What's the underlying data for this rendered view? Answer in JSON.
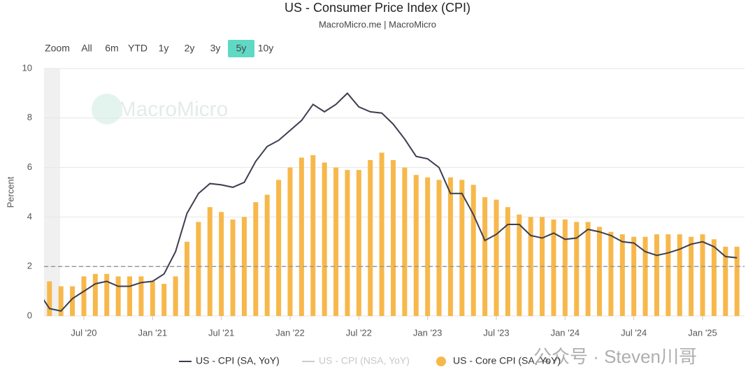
{
  "chart_data": {
    "type": "bar-line",
    "title": "US - Consumer Price Index (CPI)",
    "subtitle": "MacroMicro.me | MacroMicro",
    "range_buttons": [
      "Zoom",
      "All",
      "6m",
      "YTD",
      "1y",
      "2y",
      "3y",
      "5y",
      "10y"
    ],
    "selected_range": "5y",
    "ylabel": "Percent",
    "ylim": [
      0,
      10
    ],
    "yticks": [
      0,
      2,
      4,
      6,
      8,
      10
    ],
    "grid": true,
    "reference_line": 2,
    "watermark": "MacroMicro",
    "overlay_text": "公众号 · Steven川哥",
    "categories": [
      null,
      null,
      null,
      null,
      "Jul '20",
      null,
      null,
      null,
      null,
      null,
      "Jan '21",
      null,
      null,
      null,
      null,
      null,
      "Jul '21",
      null,
      null,
      null,
      null,
      null,
      "Jan '22",
      null,
      null,
      null,
      null,
      null,
      "Jul '22",
      null,
      null,
      null,
      null,
      null,
      "Jan '23",
      null,
      null,
      null,
      null,
      null,
      "Jul '23",
      null,
      null,
      null,
      null,
      null,
      "Jan '24",
      null,
      null,
      null,
      null,
      null,
      "Jul '24",
      null,
      null,
      null,
      null,
      null,
      "Jan '25",
      null,
      null,
      null
    ],
    "series": [
      {
        "name": "US - CPI (SA, YoY)",
        "kind": "line",
        "color": "#3b3f4f",
        "values": [
          1.0,
          0.3,
          0.2,
          0.7,
          1.0,
          1.3,
          1.4,
          1.2,
          1.2,
          1.35,
          1.4,
          1.7,
          2.6,
          4.15,
          4.95,
          5.35,
          5.3,
          5.2,
          5.4,
          6.25,
          6.85,
          7.1,
          7.5,
          7.9,
          8.55,
          8.25,
          8.55,
          9.0,
          8.45,
          8.25,
          8.2,
          7.75,
          7.15,
          6.45,
          6.35,
          6.0,
          4.95,
          4.95,
          4.1,
          3.05,
          3.3,
          3.7,
          3.7,
          3.25,
          3.15,
          3.35,
          3.1,
          3.15,
          3.5,
          3.4,
          3.25,
          3.0,
          2.95,
          2.6,
          2.45,
          2.55,
          2.7,
          2.9,
          3.0,
          2.8,
          2.4,
          2.35
        ]
      },
      {
        "name": "US - CPI (NSA, YoY)",
        "kind": "line",
        "color": "#cccccc",
        "hidden": true
      },
      {
        "name": "US - Core CPI (SA, YoY)",
        "kind": "bar",
        "color": "#f7b84b",
        "values": [
          null,
          1.4,
          1.2,
          1.2,
          1.6,
          1.7,
          1.7,
          1.6,
          1.6,
          1.6,
          1.4,
          1.3,
          1.6,
          3.0,
          3.8,
          4.4,
          4.2,
          3.9,
          4.0,
          4.6,
          4.9,
          5.5,
          6.0,
          6.4,
          6.5,
          6.2,
          6.0,
          5.9,
          5.9,
          6.3,
          6.6,
          6.3,
          6.0,
          5.7,
          5.6,
          5.5,
          5.6,
          5.5,
          5.3,
          4.8,
          4.7,
          4.4,
          4.1,
          4.0,
          4.0,
          3.9,
          3.9,
          3.8,
          3.8,
          3.6,
          3.4,
          3.3,
          3.2,
          3.2,
          3.3,
          3.3,
          3.3,
          3.2,
          3.3,
          3.1,
          2.8,
          2.8
        ]
      }
    ]
  }
}
